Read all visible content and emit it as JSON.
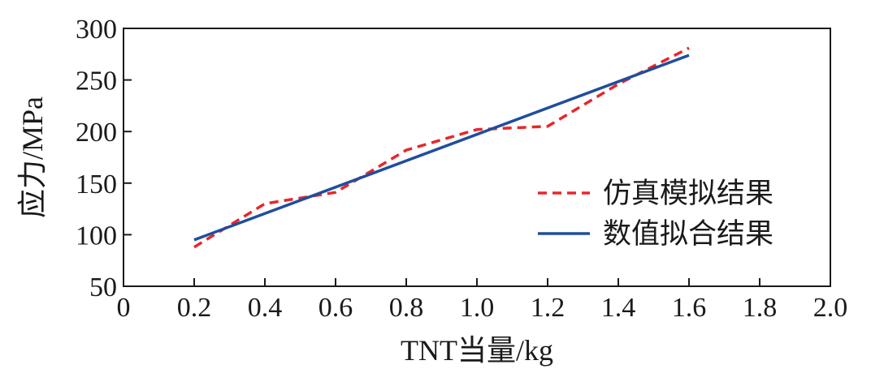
{
  "chart_data": {
    "type": "line",
    "xlabel": "TNT当量/kg",
    "ylabel": "应力/MPa",
    "xlim": [
      0,
      2.0
    ],
    "ylim": [
      50,
      300
    ],
    "x_ticks": [
      "0",
      "0.2",
      "0.4",
      "0.6",
      "0.8",
      "1.0",
      "1.2",
      "1.4",
      "1.6",
      "1.8",
      "2.0"
    ],
    "y_ticks": [
      "50",
      "100",
      "150",
      "200",
      "250",
      "300"
    ],
    "x_tick_values": [
      0,
      0.2,
      0.4,
      0.6,
      0.8,
      1.0,
      1.2,
      1.4,
      1.6,
      1.8,
      2.0
    ],
    "y_tick_values": [
      50,
      100,
      150,
      200,
      250,
      300
    ],
    "grid": false,
    "legend_position": "right",
    "series": [
      {
        "name": "仿真模拟结果",
        "style": "dashed",
        "color": "#e8262b",
        "points": [
          [
            0.2,
            88
          ],
          [
            0.4,
            130
          ],
          [
            0.6,
            141
          ],
          [
            0.8,
            182
          ],
          [
            1.0,
            202
          ],
          [
            1.2,
            205
          ],
          [
            1.4,
            246
          ],
          [
            1.6,
            281
          ]
        ]
      },
      {
        "name": "数值拟合结果",
        "style": "solid",
        "color": "#1f4e9c",
        "points": [
          [
            0.2,
            95
          ],
          [
            1.6,
            274
          ]
        ]
      }
    ]
  }
}
